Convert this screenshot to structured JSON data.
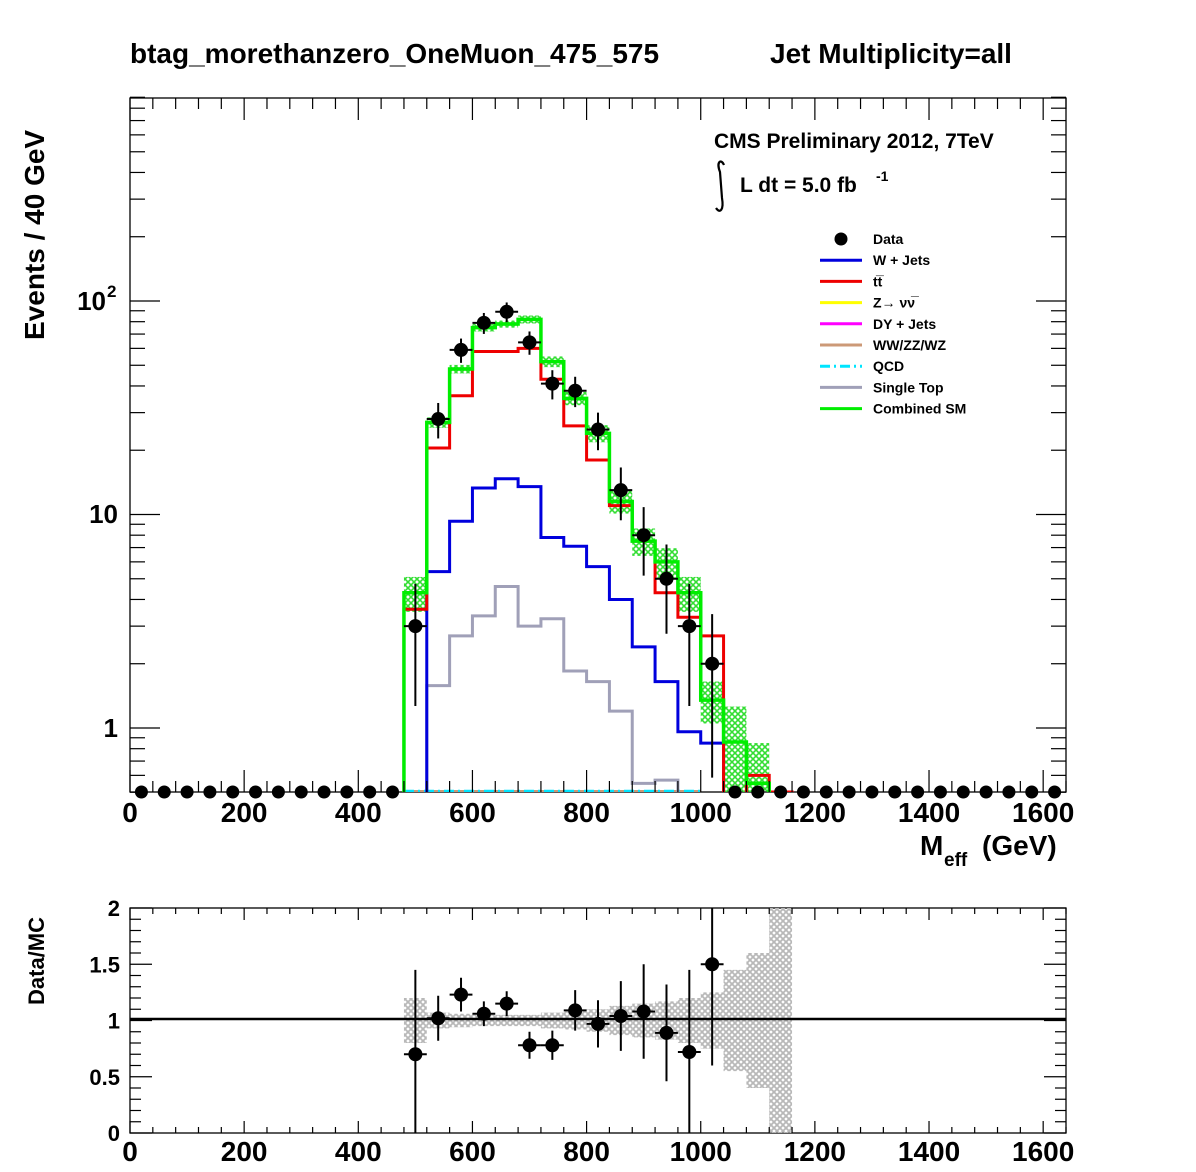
{
  "title": "btag_morethanzero_OneMuon_475_575",
  "subtitle": "Jet Multiplicity=all",
  "annotation": {
    "line1": "CMS Preliminary 2012, 7TeV",
    "lumi_prefix": "L dt = 5.0 fb",
    "lumi_exp": "-1"
  },
  "colors": {
    "w_jets": "#0000dd",
    "ttbar": "#ee0000",
    "zinv": "#ffff00",
    "dy": "#ff00ff",
    "diboson": "#cc9977",
    "qcd": "#00e5ff",
    "single_top": "#a0a0b8",
    "combined": "#00ee00",
    "band_main": "#33dd33",
    "band_ratio": "#b8b8b8"
  },
  "chart_data": [
    {
      "type": "step-histogram",
      "xlabel_main": "M",
      "xlabel_sub": "eff",
      "xlabel_unit": "(GeV)",
      "ylabel": "Events / 40 GeV",
      "xlim": [
        0,
        1640
      ],
      "ylim": [
        0.5,
        900
      ],
      "yscale": "log",
      "x_ticks": [
        "0",
        "200",
        "400",
        "600",
        "800",
        "1000",
        "1200",
        "1400",
        "1600"
      ],
      "y_tick_10": "10",
      "y_tick_1": "1",
      "y_tick_100_base": "10",
      "y_tick_100_exp": "2",
      "bin_width": 40,
      "bin_edges_start": 0,
      "legend": [
        {
          "label": "Data",
          "key": "data",
          "style": "marker"
        },
        {
          "label": "W + Jets",
          "key": "w_jets",
          "style": "line"
        },
        {
          "label": "tt̅",
          "key": "ttbar",
          "style": "line"
        },
        {
          "label": "Z→ νν̅",
          "key": "zinv",
          "style": "line"
        },
        {
          "label": "DY + Jets",
          "key": "dy",
          "style": "line"
        },
        {
          "label": "WW/ZZ/WZ",
          "key": "diboson",
          "style": "line"
        },
        {
          "label": "QCD",
          "key": "qcd",
          "style": "dash"
        },
        {
          "label": "Single Top",
          "key": "single_top",
          "style": "line"
        },
        {
          "label": "Combined SM",
          "key": "combined",
          "style": "line"
        }
      ],
      "series": {
        "combined": [
          0,
          0,
          0,
          0,
          0,
          0,
          0,
          0,
          0,
          0,
          0,
          0,
          4.3,
          27,
          48,
          75,
          78,
          82,
          52,
          35,
          24,
          11.5,
          7.5,
          6.0,
          4.3,
          1.35,
          0.86,
          0.55,
          0,
          0,
          0,
          0,
          0,
          0,
          0,
          0,
          0,
          0,
          0,
          0,
          0
        ],
        "combined_err": [
          0,
          0,
          0,
          0,
          0,
          0,
          0,
          0,
          0,
          0,
          0,
          0,
          0.8,
          1.5,
          2.2,
          3,
          3,
          3.5,
          3,
          2.5,
          2.2,
          1.4,
          1.1,
          0.95,
          0.8,
          0.3,
          0.4,
          0.3,
          0,
          0,
          0,
          0,
          0,
          0,
          0,
          0,
          0,
          0,
          0,
          0,
          0
        ],
        "ttbar": [
          0,
          0,
          0,
          0,
          0,
          0,
          0,
          0,
          0,
          0,
          0,
          0,
          3.6,
          20.5,
          36,
          58,
          58,
          60,
          43,
          26,
          18,
          11,
          7.5,
          4.3,
          3.3,
          2.7,
          0,
          0.6,
          0.5,
          0,
          0,
          0,
          0,
          0,
          0,
          0,
          0,
          0,
          0,
          0,
          0
        ],
        "w_jets": [
          0,
          0,
          0,
          0,
          0,
          0,
          0,
          0,
          0,
          0,
          0,
          0,
          0,
          5.4,
          9.3,
          13.3,
          14.7,
          13.5,
          7.8,
          7.1,
          5.7,
          4.0,
          2.4,
          1.65,
          0.96,
          0.85,
          0,
          0,
          0,
          0,
          0,
          0,
          0,
          0,
          0,
          0,
          0,
          0,
          0,
          0,
          0
        ],
        "single_top": [
          0,
          0,
          0,
          0,
          0,
          0,
          0,
          0,
          0,
          0,
          0,
          0,
          0,
          1.58,
          2.7,
          3.35,
          4.6,
          3.0,
          3.25,
          1.85,
          1.65,
          1.2,
          0.55,
          0.57,
          0,
          0,
          0,
          0,
          0,
          0,
          0,
          0,
          0,
          0,
          0,
          0,
          0,
          0,
          0,
          0,
          0
        ],
        "data": [
          0,
          0,
          0,
          0,
          0,
          0,
          0,
          0,
          0,
          0,
          0,
          0,
          3,
          28,
          59,
          79,
          89,
          64,
          41,
          38,
          25,
          13,
          8,
          5,
          3,
          2,
          0,
          0,
          0,
          0,
          0,
          0,
          0,
          0,
          0,
          0,
          0,
          0,
          0,
          0,
          0
        ]
      }
    },
    {
      "type": "ratio",
      "ylabel": "Data/MC",
      "xlim": [
        0,
        1640
      ],
      "ylim": [
        0,
        2
      ],
      "y_ticks": [
        "0",
        "0.5",
        "1",
        "1.5",
        "2"
      ],
      "x_ticks": [
        "0",
        "200",
        "400",
        "600",
        "800",
        "1000",
        "1200",
        "1400",
        "1600"
      ],
      "points": [
        {
          "x": 500,
          "y": 0.7,
          "err": 0.75
        },
        {
          "x": 540,
          "y": 1.02,
          "err": 0.2
        },
        {
          "x": 580,
          "y": 1.23,
          "err": 0.15
        },
        {
          "x": 620,
          "y": 1.06,
          "err": 0.11
        },
        {
          "x": 660,
          "y": 1.15,
          "err": 0.11
        },
        {
          "x": 700,
          "y": 0.78,
          "err": 0.12
        },
        {
          "x": 740,
          "y": 0.78,
          "err": 0.13
        },
        {
          "x": 780,
          "y": 1.09,
          "err": 0.18
        },
        {
          "x": 820,
          "y": 0.97,
          "err": 0.21
        },
        {
          "x": 860,
          "y": 1.04,
          "err": 0.31
        },
        {
          "x": 900,
          "y": 1.08,
          "err": 0.42
        },
        {
          "x": 940,
          "y": 0.89,
          "err": 0.43
        },
        {
          "x": 980,
          "y": 0.72,
          "err": 0.73
        },
        {
          "x": 1020,
          "y": 1.5,
          "err": 0.9
        }
      ],
      "band_halfwidth": [
        0,
        0,
        0,
        0,
        0,
        0,
        0,
        0,
        0,
        0,
        0,
        0,
        0.2,
        0.07,
        0.06,
        0.05,
        0.05,
        0.05,
        0.07,
        0.08,
        0.1,
        0.13,
        0.15,
        0.17,
        0.2,
        0.25,
        0.45,
        0.6,
        1.2,
        0,
        0,
        0,
        0,
        0,
        0,
        0,
        0,
        0,
        0,
        0,
        0
      ]
    }
  ]
}
